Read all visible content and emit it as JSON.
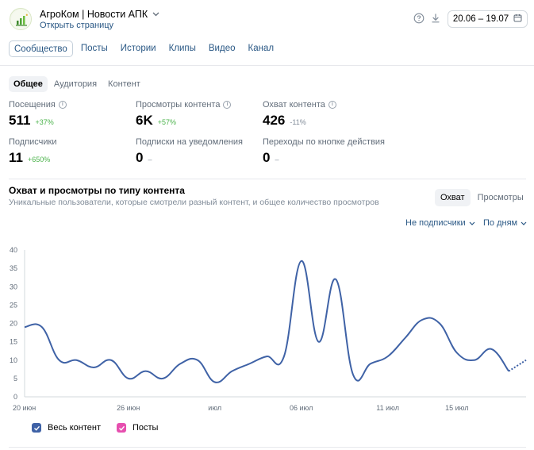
{
  "header": {
    "community_title": "АгроКом | Новости АПК",
    "open_page": "Открыть страницу",
    "date_range": "20.06 – 19.07"
  },
  "tabs": [
    {
      "label": "Сообщество",
      "active": true
    },
    {
      "label": "Посты",
      "active": false
    },
    {
      "label": "Истории",
      "active": false
    },
    {
      "label": "Клипы",
      "active": false
    },
    {
      "label": "Видео",
      "active": false
    },
    {
      "label": "Канал",
      "active": false
    }
  ],
  "subtabs": [
    {
      "label": "Общее",
      "active": true
    },
    {
      "label": "Аудитория",
      "active": false
    },
    {
      "label": "Контент",
      "active": false
    }
  ],
  "metrics": {
    "visits": {
      "label": "Посещения",
      "value": "511",
      "delta": "+37%"
    },
    "views": {
      "label": "Просмотры контента",
      "value": "6K",
      "delta": "+57%"
    },
    "reach": {
      "label": "Охват контента",
      "value": "426",
      "delta": "-11%"
    },
    "subs": {
      "label": "Подписчики",
      "value": "11",
      "delta": "+650%"
    },
    "notif": {
      "label": "Подписки на уведомления",
      "value": "0",
      "delta": "–"
    },
    "action": {
      "label": "Переходы по кнопке действия",
      "value": "0",
      "delta": "–"
    }
  },
  "chart_section": {
    "title": "Охват и просмотры по типу контента",
    "subtitle": "Уникальные пользователи, которые смотрели разный контент, и общее количество просмотров",
    "toggle": {
      "reach": "Охват",
      "views": "Просмотры"
    },
    "filter_audience": "Не подписчики",
    "filter_period": "По дням"
  },
  "chart_data": {
    "type": "line",
    "x_tick_labels": [
      "20 июн",
      "26 июн",
      "июл",
      "06 июл",
      "11 июл",
      "15 июл"
    ],
    "ylim": [
      0,
      40
    ],
    "y_ticks": [
      0,
      5,
      10,
      15,
      20,
      25,
      30,
      35,
      40
    ],
    "grid": false,
    "legend": "bottom-left",
    "series": [
      {
        "name": "Весь контент",
        "color": "#3f62a6",
        "x": [
          "20.06",
          "21.06",
          "22.06",
          "23.06",
          "24.06",
          "25.06",
          "26.06",
          "27.06",
          "28.06",
          "29.06",
          "30.06",
          "01.07",
          "02.07",
          "03.07",
          "04.07",
          "05.07",
          "06.07",
          "07.07",
          "08.07",
          "09.07",
          "10.07",
          "11.07",
          "12.07",
          "13.07",
          "14.07",
          "15.07",
          "16.07",
          "17.07",
          "18.07",
          "19.07"
        ],
        "values": [
          19,
          19,
          10,
          10,
          8,
          10,
          5,
          7,
          5,
          9,
          10,
          4,
          7,
          9,
          11,
          11,
          37,
          15,
          32,
          6,
          9,
          11,
          16,
          21,
          20,
          12,
          10,
          13,
          7,
          10
        ]
      },
      {
        "name": "Посты",
        "color": "#e64faf",
        "x": [],
        "values": []
      }
    ]
  }
}
